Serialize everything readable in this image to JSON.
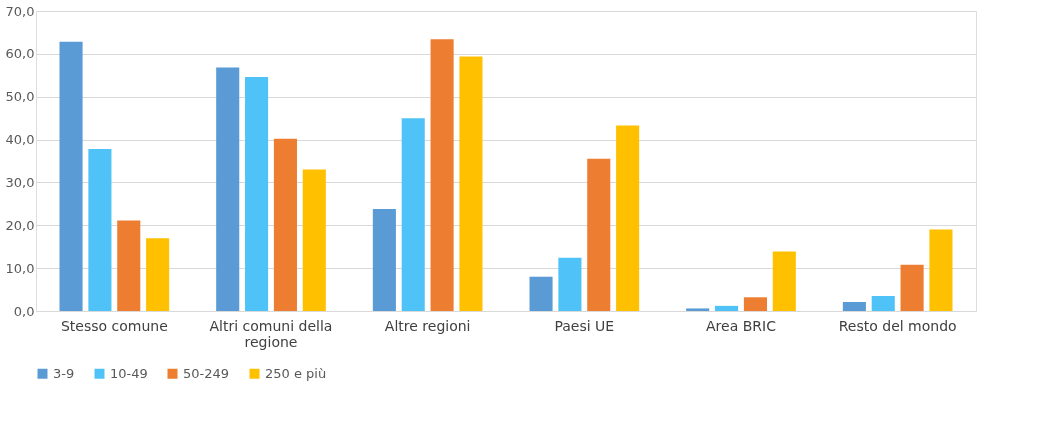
{
  "chart_data": {
    "type": "bar",
    "categories": [
      "Stesso comune",
      "Altri comuni della regione",
      "Altre regioni",
      "Paesi UE",
      "Area BRIC",
      "Resto del mondo"
    ],
    "series": [
      {
        "name": "3-9",
        "color": "#5b9bd5",
        "values": [
          62.8,
          56.8,
          23.8,
          8.0,
          0.6,
          2.1
        ]
      },
      {
        "name": "10-49",
        "color": "#4fc3f7",
        "values": [
          37.8,
          54.6,
          45.0,
          12.4,
          1.2,
          3.5
        ]
      },
      {
        "name": "50-249",
        "color": "#ed7d31",
        "values": [
          21.1,
          40.2,
          63.4,
          35.5,
          3.2,
          10.8
        ]
      },
      {
        "name": "250 e più",
        "color": "#ffc000",
        "values": [
          17.0,
          33.0,
          59.4,
          43.3,
          13.9,
          19.0
        ]
      }
    ],
    "ylim": [
      0,
      70
    ],
    "yticks": [
      {
        "value": 0,
        "label": "0,0"
      },
      {
        "value": 10,
        "label": "10,0"
      },
      {
        "value": 20,
        "label": "20,0"
      },
      {
        "value": 30,
        "label": "30,0"
      },
      {
        "value": 40,
        "label": "40,0"
      },
      {
        "value": 50,
        "label": "50,0"
      },
      {
        "value": 60,
        "label": "60,0"
      },
      {
        "value": 70,
        "label": "70,0"
      }
    ],
    "grid": "y",
    "legend": "bottom"
  }
}
